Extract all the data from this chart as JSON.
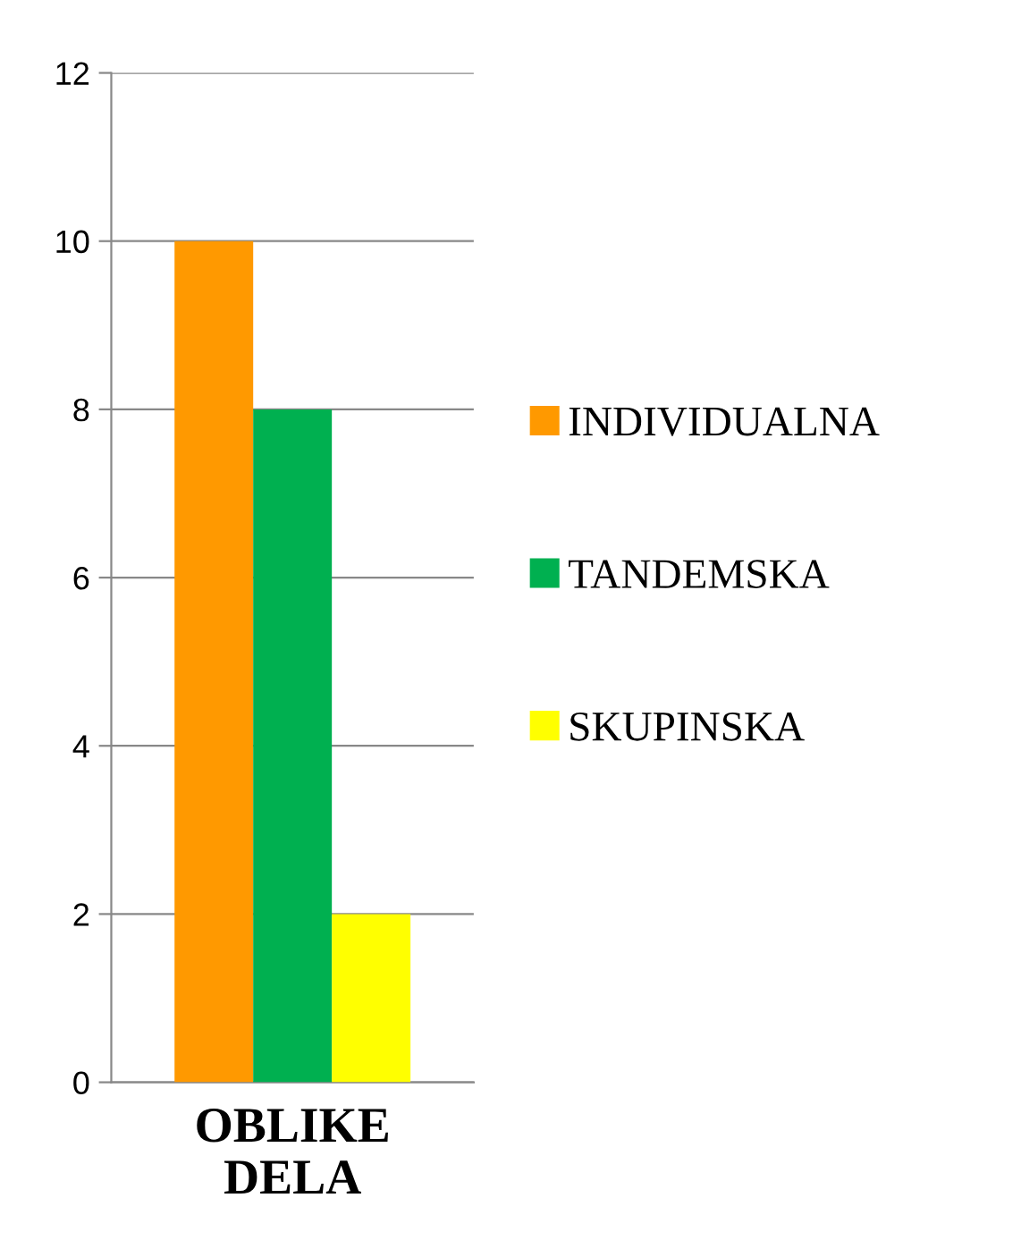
{
  "chart_data": {
    "type": "bar",
    "categories": [
      "OBLIKE\nDELA"
    ],
    "series": [
      {
        "name": "INDIVIDUALNA",
        "color": "#ff9900",
        "values": [
          10
        ]
      },
      {
        "name": "TANDEMSKA",
        "color": "#00b050",
        "values": [
          8
        ]
      },
      {
        "name": "SKUPINSKA",
        "color": "#ffff00",
        "values": [
          2
        ]
      }
    ],
    "ylim": [
      0,
      12
    ],
    "yticks": [
      0,
      2,
      4,
      6,
      8,
      10,
      12
    ],
    "grid": "y",
    "legend": "right"
  }
}
